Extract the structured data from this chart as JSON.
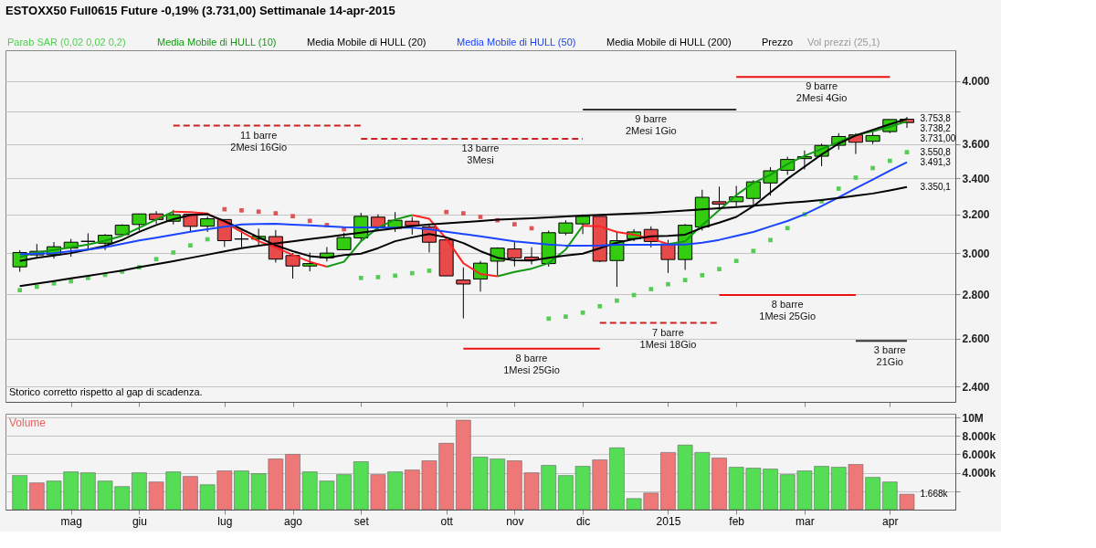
{
  "chart_data": [
    {
      "type": "candlestick",
      "title": "ESTOXX50 Full0615 Future   -0,19% (3.731,00)   Settimanale   14-apr-2015",
      "x": [
        "2014-04-14",
        "2014-04-21",
        "2014-04-28",
        "2014-05-05",
        "2014-05-12",
        "2014-05-19",
        "2014-05-26",
        "2014-06-02",
        "2014-06-09",
        "2014-06-16",
        "2014-06-23",
        "2014-06-30",
        "2014-07-07",
        "2014-07-14",
        "2014-07-21",
        "2014-07-28",
        "2014-08-04",
        "2014-08-11",
        "2014-08-18",
        "2014-08-25",
        "2014-09-01",
        "2014-09-08",
        "2014-09-15",
        "2014-09-22",
        "2014-09-29",
        "2014-10-06",
        "2014-10-13",
        "2014-10-20",
        "2014-10-27",
        "2014-11-03",
        "2014-11-10",
        "2014-11-17",
        "2014-11-24",
        "2014-12-01",
        "2014-12-08",
        "2014-12-15",
        "2014-12-22",
        "2014-12-29",
        "2015-01-05",
        "2015-01-12",
        "2015-01-19",
        "2015-01-26",
        "2015-02-02",
        "2015-02-09",
        "2015-02-16",
        "2015-02-23",
        "2015-03-02",
        "2015-03-09",
        "2015-03-16",
        "2015-03-23",
        "2015-03-30",
        "2015-04-06",
        "2015-04-13"
      ],
      "series": [
        {
          "name": "Parab SAR (0,02 0,02 0,2)",
          "type": "scatter",
          "marker": "square",
          "color": "#55cc55",
          "values": [
            2820,
            2836,
            2852,
            2862,
            2878,
            2893,
            2909,
            2930,
            2970,
            3003,
            3039,
            3070,
            3228,
            3222,
            3215,
            3206,
            3191,
            3166,
            3144,
            3122,
            2878,
            2882,
            2889,
            2901,
            2913,
            3213,
            3206,
            3187,
            3169,
            3148,
            3127,
            2689,
            2698,
            2716,
            2745,
            2771,
            2797,
            2825,
            2848,
            2868,
            2891,
            2921,
            2961,
            3011,
            3066,
            3128,
            3201,
            3271,
            3341,
            3403,
            3458,
            3500,
            3550.8
          ],
          "colors": [
            "#55cc55",
            "#55cc55",
            "#55cc55",
            "#55cc55",
            "#55cc55",
            "#55cc55",
            "#55cc55",
            "#55cc55",
            "#55cc55",
            "#55cc55",
            "#55cc55",
            "#55cc55",
            "#dd5555",
            "#dd5555",
            "#dd5555",
            "#dd5555",
            "#dd5555",
            "#dd5555",
            "#dd5555",
            "#dd5555",
            "#55cc55",
            "#55cc55",
            "#55cc55",
            "#55cc55",
            "#55cc55",
            "#dd5555",
            "#dd5555",
            "#dd5555",
            "#dd5555",
            "#dd5555",
            "#dd5555",
            "#55cc55",
            "#55cc55",
            "#55cc55",
            "#55cc55",
            "#55cc55",
            "#55cc55",
            "#55cc55",
            "#55cc55",
            "#55cc55",
            "#55cc55",
            "#55cc55",
            "#55cc55",
            "#55cc55",
            "#55cc55",
            "#55cc55",
            "#55cc55",
            "#55cc55",
            "#55cc55",
            "#55cc55",
            "#55cc55",
            "#55cc55",
            "#55cc55"
          ]
        },
        {
          "name": "Media Mobile di HULL (10)",
          "type": "line",
          "color": "#119911",
          "values": [
            2980,
            3004,
            3015,
            3029,
            3043,
            3063,
            3088,
            3130,
            3173,
            3215,
            null,
            null,
            null,
            null,
            null,
            null,
            null,
            null,
            2933,
            2957,
            3060,
            3130,
            3173,
            3197,
            null,
            null,
            null,
            null,
            2886,
            2907,
            2923,
            2950,
            3018,
            3140,
            null,
            null,
            null,
            null,
            3046,
            3060,
            3144,
            3224,
            3305,
            3373,
            3419,
            3481,
            3529,
            3570,
            3611,
            3655,
            3677,
            3705,
            3738.2
          ]
        },
        {
          "type": "line",
          "color": "#ff2222",
          "values": [
            null,
            null,
            null,
            null,
            null,
            null,
            null,
            null,
            null,
            3215,
            3213,
            3205,
            3158,
            3108,
            3060,
            3029,
            2991,
            2957,
            2933,
            null,
            null,
            null,
            null,
            3197,
            3177,
            3073,
            2950,
            2897,
            2886,
            null,
            null,
            null,
            null,
            3140,
            3137,
            3108,
            3094,
            3073,
            3046,
            null,
            null,
            null,
            null,
            null,
            null,
            null,
            null,
            null,
            null,
            null,
            null,
            null,
            null
          ]
        },
        {
          "name": "Media Mobile di HULL (20)",
          "type": "line",
          "color": "#000000",
          "values": [
            2961,
            2977,
            2988,
            3000,
            3018,
            3036,
            3067,
            3108,
            3144,
            3175,
            3197,
            3201,
            3165,
            3122,
            3080,
            3039,
            3010,
            2985,
            2977,
            2990,
            2997,
            3025,
            3060,
            3080,
            3097,
            3080,
            3051,
            3010,
            2977,
            2964,
            2963,
            2977,
            2988,
            2997,
            3025,
            3053,
            3071,
            3085,
            3088,
            3094,
            3130,
            3157,
            3187,
            3245,
            3320,
            3396,
            3466,
            3537,
            3602,
            3651,
            3686,
            3721,
            3753.8
          ]
        },
        {
          "name": "Media Mobile di HULL (50)",
          "type": "line",
          "color": "#1a44ff",
          "values": [
            2995,
            2997,
            3000,
            3010,
            3018,
            3029,
            3047,
            3064,
            3078,
            3094,
            3109,
            3122,
            3135,
            3147,
            3150,
            3151,
            3146,
            3142,
            3137,
            3133,
            3131,
            3130,
            3130,
            3130,
            3122,
            3109,
            3097,
            3085,
            3072,
            3060,
            3051,
            3043,
            3038,
            3038,
            3039,
            3042,
            3042,
            3042,
            3043,
            3043,
            3053,
            3067,
            3088,
            3108,
            3137,
            3165,
            3201,
            3245,
            3293,
            3343,
            3392,
            3443,
            3491.3
          ]
        },
        {
          "name": "Media Mobile di HULL (200)",
          "type": "line",
          "color": "#000000",
          "values": [
            2839,
            2851,
            2863,
            2876,
            2888,
            2901,
            2914,
            2930,
            2945,
            2960,
            2976,
            2992,
            3009,
            3025,
            3037,
            3049,
            3060,
            3071,
            3082,
            3093,
            3104,
            3116,
            3127,
            3139,
            3147,
            3153,
            3159,
            3165,
            3172,
            3176,
            3180,
            3185,
            3189,
            3194,
            3198,
            3202,
            3205,
            3209,
            3215,
            3221,
            3227,
            3233,
            3240,
            3247,
            3255,
            3263,
            3270,
            3278,
            3290,
            3302,
            3314,
            3331,
            3350.1
          ]
        },
        {
          "type": "line",
          "color": "#cc2222",
          "line_style": "dashed",
          "x": [
            "2014-06-16",
            "2014-09-01"
          ],
          "values": [
            3712,
            3712
          ]
        },
        {
          "type": "line",
          "color": "#cc2222",
          "line_style": "dashed",
          "x": [
            "2014-09-01",
            "2014-12-01"
          ],
          "values": [
            3631,
            3631
          ]
        },
        {
          "type": "line",
          "color": "#333333",
          "line_style": "solid",
          "x": [
            "2014-12-01",
            "2015-02-02"
          ],
          "values": [
            3813,
            3813
          ]
        },
        {
          "type": "line",
          "color": "#ee1111",
          "line_style": "solid",
          "x": [
            "2015-02-02",
            "2015-04-06"
          ],
          "values": [
            4027,
            4027
          ]
        },
        {
          "type": "line",
          "color": "#ee1111",
          "line_style": "solid",
          "x": [
            "2014-10-13",
            "2014-12-08"
          ],
          "values": [
            2557,
            2557
          ]
        },
        {
          "type": "line",
          "color": "#cc2222",
          "line_style": "dashed",
          "x": [
            "2014-12-08",
            "2015-01-26"
          ],
          "values": [
            2670,
            2670
          ]
        },
        {
          "type": "line",
          "color": "#ee1111",
          "line_style": "solid",
          "x": [
            "2015-01-26",
            "2015-03-23"
          ],
          "values": [
            2797,
            2797
          ]
        },
        {
          "type": "line",
          "color": "#333333",
          "line_style": "solid",
          "x": [
            "2015-03-23",
            "2015-04-13"
          ],
          "values": [
            2591,
            2591
          ]
        },
        {
          "name": "Prezzo",
          "type": "candlestick",
          "ohlc": [
            [
              2932,
              3015,
              2908,
              3003
            ],
            [
              2991,
              3046,
              2977,
              3009
            ],
            [
              2992,
              3056,
              2973,
              3032
            ],
            [
              3025,
              3072,
              2982,
              3055
            ],
            [
              3059,
              3101,
              3018,
              3060
            ],
            [
              3050,
              3097,
              3015,
              3091
            ],
            [
              3094,
              3148,
              3094,
              3143
            ],
            [
              3147,
              3203,
              3115,
              3203
            ],
            [
              3203,
              3218,
              3151,
              3173
            ],
            [
              3164,
              3224,
              3147,
              3199
            ],
            [
              3201,
              3201,
              3108,
              3137
            ],
            [
              3138,
              3190,
              3108,
              3177
            ],
            [
              3173,
              3173,
              3031,
              3063
            ],
            [
              3072,
              3115,
              3029,
              3071
            ],
            [
              3071,
              3125,
              3039,
              3085
            ],
            [
              3084,
              3118,
              2953,
              2970
            ],
            [
              2988,
              3000,
              2875,
              2936
            ],
            [
              2936,
              3002,
              2910,
              2948
            ],
            [
              2976,
              3030,
              2958,
              3000
            ],
            [
              3017,
              3104,
              3017,
              3079
            ],
            [
              3077,
              3209,
              3060,
              3190
            ],
            [
              3186,
              3201,
              3115,
              3134
            ],
            [
              3127,
              3213,
              3108,
              3169
            ],
            [
              3164,
              3187,
              3094,
              3141
            ],
            [
              3134,
              3144,
              3003,
              3055
            ],
            [
              3067,
              3067,
              2888,
              2888
            ],
            [
              2868,
              2929,
              2690,
              2849
            ],
            [
              2873,
              2961,
              2813,
              2950
            ],
            [
              2960,
              3029,
              2887,
              3025
            ],
            [
              3021,
              3056,
              2934,
              2976
            ],
            [
              2980,
              3029,
              2944,
              2966
            ],
            [
              2948,
              3115,
              2933,
              3104
            ],
            [
              3102,
              3169,
              3091,
              3155
            ],
            [
              3150,
              3201,
              3097,
              3190
            ],
            [
              3190,
              3190,
              2955,
              2960
            ],
            [
              2963,
              3108,
              2836,
              3063
            ],
            [
              3073,
              3122,
              3060,
              3108
            ],
            [
              3121,
              3137,
              3029,
              3059
            ],
            [
              3046,
              3067,
              2902,
              2968
            ],
            [
              2968,
              3150,
              2917,
              3143
            ],
            [
              3134,
              3335,
              3115,
              3293
            ],
            [
              3269,
              3352,
              3231,
              3256
            ],
            [
              3269,
              3356,
              3245,
              3296
            ],
            [
              3287,
              3388,
              3245,
              3379
            ],
            [
              3373,
              3463,
              3302,
              3442
            ],
            [
              3445,
              3524,
              3419,
              3508
            ],
            [
              3513,
              3561,
              3450,
              3524
            ],
            [
              3527,
              3602,
              3469,
              3591
            ],
            [
              3592,
              3665,
              3566,
              3645
            ],
            [
              3655,
              3665,
              3540,
              3610
            ],
            [
              3616,
              3675,
              3599,
              3651
            ],
            [
              3675,
              3750,
              3665,
              3750
            ],
            [
              3752,
              3766,
              3698,
              3731
            ]
          ],
          "colors": [
            "#33cc11",
            "#33cc11",
            "#33cc11",
            "#33cc11",
            "#33cc11",
            "#33cc11",
            "#33cc11",
            "#33cc11",
            "#e84a4a",
            "#33cc11",
            "#e84a4a",
            "#33cc11",
            "#e84a4a",
            "#e84a4a",
            "#33cc11",
            "#e84a4a",
            "#e84a4a",
            "#33cc11",
            "#33cc11",
            "#33cc11",
            "#33cc11",
            "#e84a4a",
            "#33cc11",
            "#e84a4a",
            "#e84a4a",
            "#e84a4a",
            "#e84a4a",
            "#33cc11",
            "#33cc11",
            "#e84a4a",
            "#e84a4a",
            "#33cc11",
            "#33cc11",
            "#33cc11",
            "#e84a4a",
            "#33cc11",
            "#33cc11",
            "#e84a4a",
            "#e84a4a",
            "#33cc11",
            "#33cc11",
            "#e84a4a",
            "#33cc11",
            "#33cc11",
            "#33cc11",
            "#33cc11",
            "#33cc11",
            "#33cc11",
            "#33cc11",
            "#e84a4a",
            "#33cc11",
            "#33cc11",
            "#e84a4a"
          ]
        }
      ],
      "xlim": [
        "2014-04-10",
        "2015-05-01"
      ],
      "ylim": [
        2340,
        4210
      ],
      "yticks": [
        {
          "value": 2400,
          "label": "2.400"
        },
        {
          "value": 2600,
          "label": "2.600"
        },
        {
          "value": 2800,
          "label": "2.800"
        },
        {
          "value": 3000,
          "label": "3.000"
        },
        {
          "value": 3200,
          "label": "3.200"
        },
        {
          "value": 3400,
          "label": "3.400"
        },
        {
          "value": 3600,
          "label": "3.600"
        },
        {
          "value": 3800,
          "label": null
        },
        {
          "value": 4000,
          "label": "4.000"
        }
      ],
      "xticks": [
        "2014-05-05",
        "2014-06-02",
        "2014-07-07",
        "2014-08-04",
        "2014-09-01",
        "2014-10-06",
        "2014-11-03",
        "2014-12-01",
        "2015-01-05",
        "2015-02-02",
        "2015-03-02",
        "2015-04-06"
      ],
      "log": true,
      "grid": "y",
      "tick_labels": "y",
      "annotations": [
        "Vol prezzi (25,1)",
        "Storico corretto rispetto al gap di scadenza.",
        {
          "text": "11 barre\n2Mesi 16Gio",
          "x": "2014-07-21",
          "y": 3712
        },
        {
          "text": "13 barre\n3Mesi",
          "x": "2014-10-20",
          "y": 3631
        },
        {
          "text": "9 barre\n2Mesi 1Gio",
          "x": "2014-12-29",
          "y": 3813
        },
        {
          "text": "9 barre\n2Mesi 4Gio",
          "x": "2015-03-09",
          "y": 4027
        },
        {
          "text": "8 barre\n1Mesi 25Gio",
          "x": "2014-11-10",
          "y": 2557
        },
        {
          "text": "7 barre\n1Mesi 18Gio",
          "x": "2015-01-05",
          "y": 2670
        },
        {
          "text": "8 barre\n1Mesi 25Gio",
          "x": "2015-02-23",
          "y": 2797
        },
        {
          "text": "3 barre\n21Gio",
          "x": "2015-04-06",
          "y": 2591
        },
        {
          "text": "3.753,8",
          "x": "2015-04-13",
          "y": 3753.8
        },
        {
          "text": "3.738,2",
          "x": "2015-04-13",
          "y": 3738.2
        },
        {
          "text": "3.731,00",
          "x": "2015-04-13",
          "y": 3731
        },
        {
          "text": "3.550,8",
          "x": "2015-04-13",
          "y": 3550.8
        },
        {
          "text": "3.491,3",
          "x": "2015-04-13",
          "y": 3491.3
        },
        {
          "text": "3.350,1",
          "x": "2015-04-13",
          "y": 3350.1
        }
      ]
    },
    {
      "type": "bar",
      "title": "Volume",
      "x": [
        "2014-04-14",
        "2014-04-21",
        "2014-04-28",
        "2014-05-05",
        "2014-05-12",
        "2014-05-19",
        "2014-05-26",
        "2014-06-02",
        "2014-06-09",
        "2014-06-16",
        "2014-06-23",
        "2014-06-30",
        "2014-07-07",
        "2014-07-14",
        "2014-07-21",
        "2014-07-28",
        "2014-08-04",
        "2014-08-11",
        "2014-08-18",
        "2014-08-25",
        "2014-09-01",
        "2014-09-08",
        "2014-09-15",
        "2014-09-22",
        "2014-09-29",
        "2014-10-06",
        "2014-10-13",
        "2014-10-20",
        "2014-10-27",
        "2014-11-03",
        "2014-11-10",
        "2014-11-17",
        "2014-11-24",
        "2014-12-01",
        "2014-12-08",
        "2014-12-15",
        "2014-12-22",
        "2014-12-29",
        "2015-01-05",
        "2015-01-12",
        "2015-01-19",
        "2015-01-26",
        "2015-02-02",
        "2015-02-09",
        "2015-02-16",
        "2015-02-23",
        "2015-03-02",
        "2015-03-09",
        "2015-03-16",
        "2015-03-23",
        "2015-03-30",
        "2015-04-06",
        "2015-04-13"
      ],
      "values": [
        3700000,
        2900000,
        3100000,
        4100000,
        4000000,
        3100000,
        2500000,
        4000000,
        3000000,
        4100000,
        3600000,
        2700000,
        4200000,
        4200000,
        3900000,
        5500000,
        6000000,
        4100000,
        3100000,
        3800000,
        5200000,
        3800000,
        4100000,
        4300000,
        5300000,
        7200000,
        9700000,
        5700000,
        5500000,
        5300000,
        4000000,
        4800000,
        3700000,
        4700000,
        5400000,
        6700000,
        1200000,
        1800000,
        6200000,
        7000000,
        6200000,
        5600000,
        4600000,
        4500000,
        4400000,
        3800000,
        4200000,
        4700000,
        4600000,
        4900000,
        3500000,
        3000000,
        1668000
      ],
      "colors": [
        "#55dd55",
        "#ee7777",
        "#55dd55",
        "#55dd55",
        "#55dd55",
        "#55dd55",
        "#55dd55",
        "#55dd55",
        "#ee7777",
        "#55dd55",
        "#ee7777",
        "#55dd55",
        "#ee7777",
        "#55dd55",
        "#55dd55",
        "#ee7777",
        "#ee7777",
        "#55dd55",
        "#55dd55",
        "#55dd55",
        "#55dd55",
        "#ee7777",
        "#55dd55",
        "#ee7777",
        "#ee7777",
        "#ee7777",
        "#ee7777",
        "#55dd55",
        "#55dd55",
        "#ee7777",
        "#ee7777",
        "#55dd55",
        "#55dd55",
        "#55dd55",
        "#ee7777",
        "#55dd55",
        "#55dd55",
        "#ee7777",
        "#ee7777",
        "#55dd55",
        "#55dd55",
        "#ee7777",
        "#55dd55",
        "#55dd55",
        "#55dd55",
        "#55dd55",
        "#55dd55",
        "#55dd55",
        "#55dd55",
        "#ee7777",
        "#55dd55",
        "#55dd55",
        "#ee7777"
      ],
      "xlim": [
        "2014-04-10",
        "2015-05-01"
      ],
      "xticks": [
        {
          "value": "2014-05-05",
          "label": "mag"
        },
        {
          "value": "2014-06-02",
          "label": "giu"
        },
        {
          "value": "2014-07-07",
          "label": "lug"
        },
        {
          "value": "2014-08-04",
          "label": "ago"
        },
        {
          "value": "2014-09-01",
          "label": "set"
        },
        {
          "value": "2014-10-06",
          "label": "ott"
        },
        {
          "value": "2014-11-03",
          "label": "nov"
        },
        {
          "value": "2014-12-01",
          "label": "dic"
        },
        {
          "value": "2015-01-05",
          "label": "2015"
        },
        {
          "value": "2015-02-02",
          "label": "feb"
        },
        {
          "value": "2015-03-02",
          "label": "mar"
        },
        {
          "value": "2015-04-06",
          "label": "apr"
        }
      ],
      "ylim": [
        0,
        10400000
      ],
      "yticks": [
        {
          "value": 2000000,
          "label": null
        },
        {
          "value": 4000000,
          "label": "4.000k"
        },
        {
          "value": 6000000,
          "label": "6.000k"
        },
        {
          "value": 8000000,
          "label": "8.000k"
        },
        {
          "value": 10000000,
          "label": "10M"
        }
      ],
      "grid": "y",
      "annotations": [
        {
          "text": "1.668k",
          "x": "2015-04-13",
          "y": 1668000
        }
      ]
    }
  ]
}
